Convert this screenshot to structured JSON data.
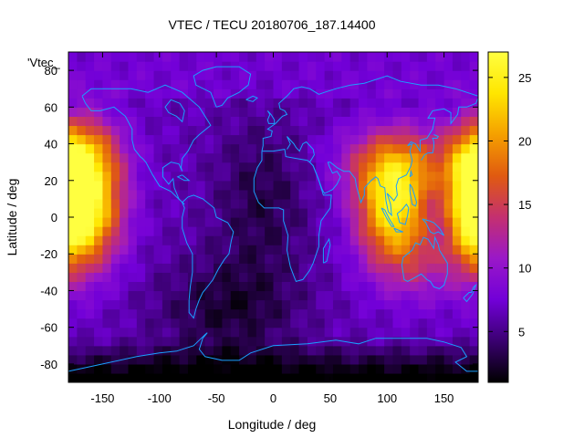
{
  "chart_data": {
    "type": "heatmap",
    "title": "VTEC / TECU 20180706_187.14400",
    "xlabel": "Longitude / deg",
    "ylabel": "Latitude / deg",
    "key_label": "'Vtec_",
    "xlim": [
      -180,
      180
    ],
    "ylim": [
      -90,
      90
    ],
    "x_ticks": [
      -150,
      -100,
      -50,
      0,
      50,
      100,
      150
    ],
    "y_ticks": [
      -80,
      -60,
      -40,
      -20,
      0,
      20,
      40,
      60,
      80
    ],
    "colorbar": {
      "range": [
        1,
        27
      ],
      "ticks": [
        5,
        10,
        15,
        20,
        25
      ],
      "palette": [
        "#000000",
        "#3a0070",
        "#7200d8",
        "#9a18c8",
        "#c43070",
        "#e05a10",
        "#f5a000",
        "#ffe600",
        "#ffff40"
      ]
    },
    "coastline_color": "#1aa0ff",
    "grid": false,
    "field_hotspots": [
      {
        "lon": -165,
        "lat": 10,
        "vtec": 26
      },
      {
        "lon": 100,
        "lat": 0,
        "vtec": 26
      },
      {
        "lon": 170,
        "lat": 5,
        "vtec": 23
      }
    ]
  }
}
